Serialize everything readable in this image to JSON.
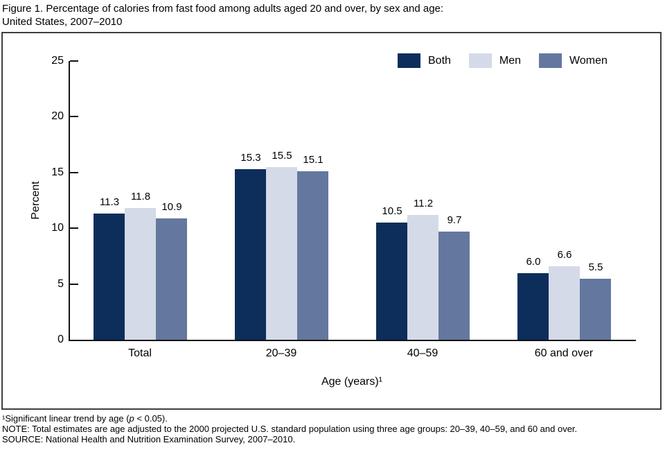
{
  "title": {
    "line1": "Figure 1. Percentage of calories from fast food among adults aged 20 and over, by sex and age:",
    "line2": "United States, 2007–2010"
  },
  "chart_data": {
    "type": "bar",
    "categories": [
      "Total",
      "20–39",
      "40–59",
      "60 and over"
    ],
    "series": [
      {
        "name": "Both",
        "color": "#0d2d5b",
        "values": [
          11.3,
          15.3,
          10.5,
          6.0
        ]
      },
      {
        "name": "Men",
        "color": "#d4dae8",
        "values": [
          11.8,
          15.5,
          11.2,
          6.6
        ]
      },
      {
        "name": "Women",
        "color": "#64779e",
        "values": [
          10.9,
          15.1,
          9.7,
          5.5
        ]
      }
    ],
    "title": "Percentage of calories from fast food among adults aged 20 and over, by sex and age: United States, 2007–2010",
    "xlabel": "Age (years)¹",
    "ylabel": "Percent",
    "ylim": [
      0,
      25
    ],
    "yticks": [
      0,
      5,
      10,
      15,
      20,
      25
    ],
    "grid": false,
    "legend_position": "top-right",
    "value_labels": true,
    "value_label_decimals": 1
  },
  "colors": {
    "axis": "#111111",
    "frame_border": "#3f3f3f",
    "text": "#000000"
  },
  "footnotes": {
    "note1_prefix": "¹Significant linear trend by age (",
    "note1_italic": "p",
    "note1_suffix": " < 0.05).",
    "note2": "NOTE: Total estimates are age adjusted to the 2000 projected U.S. standard population using three age groups: 20–39, 40–59, and 60 and over.",
    "note3": "SOURCE: National Health and Nutrition Examination Survey, 2007–2010."
  }
}
